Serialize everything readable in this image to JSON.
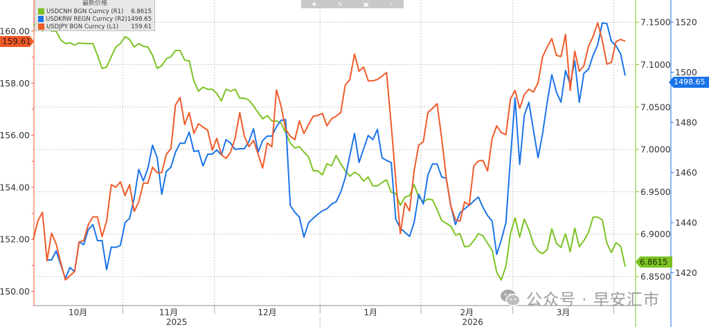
{
  "toolbar": {
    "icons": [
      "pin-icon",
      "pencil-icon",
      "save-icon",
      "zoom-icon"
    ]
  },
  "legend": {
    "title": "最新价格",
    "items": [
      {
        "name": "USDCNH BGN Curncy  (R1)",
        "value": "6.8615",
        "color": "#7cc223"
      },
      {
        "name": "USDKRW REGN Curncy  (R2)",
        "value": "1498.65",
        "color": "#1a73e8"
      },
      {
        "name": "USDJPY BGN Curncy  (L1)",
        "value": "159.61",
        "color": "#f05a28"
      }
    ]
  },
  "last_value_tags": {
    "jpy": "159.61",
    "krw": "1498.65",
    "cnh": "6.8615"
  },
  "watermark": {
    "text": "公众号 · 早安汇市",
    "icon": "wechat-icon"
  },
  "chart_data": {
    "type": "line",
    "title": "",
    "grid": true,
    "legend_position": "top-left",
    "x_tick_labels": [
      "10月",
      "11月",
      "12月",
      "1月",
      "2月",
      "3月"
    ],
    "year_labels": [
      "2025",
      "2026"
    ],
    "axes": {
      "L1": {
        "ylim": [
          149.5,
          161.0
        ],
        "ticks": [
          "150.00",
          "152.00",
          "154.00",
          "156.00",
          "158.00",
          "160.00"
        ],
        "color": "#f05a28"
      },
      "R1": {
        "ylim": [
          6.84,
          7.175
        ],
        "ticks": [
          "6.8500",
          "6.9000",
          "6.9500",
          "7.0000",
          "7.0500",
          "7.1000",
          "7.1500"
        ],
        "color": "#7cc223"
      },
      "R2": {
        "ylim": [
          1417,
          1527
        ],
        "ticks": [
          "1420",
          "1440",
          "1460",
          "1480",
          "1500",
          "1520"
        ],
        "color": "#1a73e8"
      }
    },
    "x": [
      "2025-10-06",
      "2025-10-07",
      "2025-10-08",
      "2025-10-09",
      "2025-10-10",
      "2025-10-13",
      "2025-10-14",
      "2025-10-15",
      "2025-10-16",
      "2025-10-17",
      "2025-10-20",
      "2025-10-21",
      "2025-10-22",
      "2025-10-23",
      "2025-10-24",
      "2025-10-27",
      "2025-10-28",
      "2025-10-29",
      "2025-10-30",
      "2025-10-31",
      "2025-11-03",
      "2025-11-04",
      "2025-11-05",
      "2025-11-06",
      "2025-11-07",
      "2025-11-10",
      "2025-11-11",
      "2025-11-12",
      "2025-11-13",
      "2025-11-14",
      "2025-11-17",
      "2025-11-18",
      "2025-11-19",
      "2025-11-20",
      "2025-11-21",
      "2025-11-24",
      "2025-11-25",
      "2025-11-26",
      "2025-11-27",
      "2025-11-28",
      "2025-12-01",
      "2025-12-02",
      "2025-12-03",
      "2025-12-04",
      "2025-12-05",
      "2025-12-08",
      "2025-12-09",
      "2025-12-10",
      "2025-12-11",
      "2025-12-12",
      "2025-12-15",
      "2025-12-16",
      "2025-12-17",
      "2025-12-18",
      "2025-12-19",
      "2025-12-22",
      "2025-12-23",
      "2025-12-24",
      "2025-12-25",
      "2025-12-26",
      "2025-12-29",
      "2025-12-30",
      "2025-12-31",
      "2026-01-01",
      "2026-01-02",
      "2026-01-05",
      "2026-01-06",
      "2026-01-07",
      "2026-01-08",
      "2026-01-09",
      "2026-01-12",
      "2026-01-13",
      "2026-01-14",
      "2026-01-15",
      "2026-01-16",
      "2026-01-19",
      "2026-01-20",
      "2026-01-21",
      "2026-01-22",
      "2026-01-23",
      "2026-01-26",
      "2026-01-27",
      "2026-01-28",
      "2026-01-29",
      "2026-01-30",
      "2026-02-02",
      "2026-02-03",
      "2026-02-04",
      "2026-02-05",
      "2026-02-06",
      "2026-02-09",
      "2026-02-10",
      "2026-02-11",
      "2026-02-12",
      "2026-02-13",
      "2026-02-16",
      "2026-02-17",
      "2026-02-18",
      "2026-02-19",
      "2026-02-20",
      "2026-02-23",
      "2026-02-24",
      "2026-02-25",
      "2026-02-26",
      "2026-02-27",
      "2026-03-02",
      "2026-03-03",
      "2026-03-04",
      "2026-03-05",
      "2026-03-06",
      "2026-03-09",
      "2026-03-10",
      "2026-03-11",
      "2026-03-12",
      "2026-03-13",
      "2026-03-16",
      "2026-03-17",
      "2026-03-18",
      "2026-03-19",
      "2026-03-20",
      "2026-03-23",
      "2026-03-24",
      "2026-03-25",
      "2026-03-26",
      "2026-03-27",
      "2026-03-30",
      "2026-03-31",
      "2026-04-01",
      "2026-04-02",
      "2026-04-03"
    ],
    "series": [
      {
        "name": "USDCNH BGN Curncy",
        "axis": "R1",
        "color": "#7cc223",
        "values": [
          7.1461,
          7.1493,
          7.1396,
          7.1453,
          7.1396,
          7.1396,
          7.129,
          7.1249,
          7.1257,
          7.1232,
          7.1257,
          7.1249,
          7.1249,
          7.1249,
          7.111,
          7.0955,
          7.0972,
          7.1094,
          7.1208,
          7.1249,
          7.133,
          7.1298,
          7.1208,
          7.1249,
          7.1216,
          7.1208,
          7.111,
          7.0955,
          7.0988,
          7.1069,
          7.1094,
          7.1167,
          7.1167,
          7.1053,
          7.1045,
          7.0808,
          7.0686,
          7.0735,
          7.071,
          7.071,
          7.0661,
          7.0572,
          7.071,
          7.0686,
          7.071,
          7.0604,
          7.0604,
          7.058,
          7.0515,
          7.0433,
          7.036,
          7.04,
          7.0335,
          7.0335,
          7.0311,
          7.0197,
          7.0074,
          7.0017,
          7.0033,
          6.9968,
          6.9911,
          6.9748,
          6.9748,
          6.9699,
          6.983,
          6.9805,
          6.9927,
          6.983,
          6.9748,
          6.9683,
          6.9732,
          6.9699,
          6.9626,
          6.9675,
          6.9569,
          6.9569,
          6.9609,
          6.9642,
          6.9495,
          6.9479,
          6.934,
          6.9438,
          6.9454,
          6.9585,
          6.9438,
          6.9381,
          6.9414,
          6.9405,
          6.9291,
          6.9161,
          6.9128,
          6.9095,
          6.8989,
          6.9006,
          6.8851,
          6.8859,
          6.8924,
          6.9006,
          6.8981,
          6.8892,
          6.881,
          6.8549,
          6.8459,
          6.8622,
          6.9006,
          6.9193,
          6.8965,
          6.9177,
          6.9055,
          6.8883,
          6.8802,
          6.8769,
          6.8818,
          6.9063,
          6.8892,
          6.8843,
          6.9006,
          6.8794,
          6.9071,
          6.8851,
          6.8924,
          6.9022,
          6.9201,
          6.9201,
          6.9169,
          6.8892,
          6.8785,
          6.89,
          6.8859,
          6.8615
        ]
      },
      {
        "name": "USDKRW REGN Curncy",
        "axis": "R2",
        "color": "#1a73e8",
        "values": [
          null,
          null,
          null,
          1425.1,
          1425.1,
          1428.7,
          1423.2,
          1417.7,
          1422.1,
          1420.4,
          1432.3,
          1431.2,
          1437.2,
          1439.2,
          1432.8,
          1432.8,
          1421.2,
          1430.3,
          1430.1,
          1430.9,
          1440.0,
          1441.7,
          1449.7,
          1461.2,
          1456.6,
          1461.8,
          1470.9,
          1465.9,
          1451.3,
          1460.4,
          1462.1,
          1468.1,
          1471.7,
          1471.7,
          1476.1,
          1468.4,
          1468.7,
          1462.6,
          1467.3,
          1467.3,
          1469.0,
          1467.0,
          1473.1,
          1471.7,
          1469.2,
          1469.5,
          1469.5,
          1472.3,
          1477.5,
          1468.1,
          1472.8,
          1474.5,
          1474.5,
          1478.3,
          1480.8,
          1481.1,
          1446.9,
          1444.1,
          1442.2,
          1434.2,
          1440.0,
          1441.7,
          1443.3,
          1444.7,
          1445.5,
          1447.4,
          1448.3,
          1452.1,
          1457.9,
          1466.8,
          1475.6,
          1464.0,
          1469.5,
          1474.8,
          1473.1,
          1477.2,
          1465.9,
          1464.8,
          1464.0,
          1441.4,
          1437.8,
          1436.1,
          1434.5,
          1440.0,
          1451.3,
          1447.4,
          1459.0,
          1463.4,
          1463.4,
          1458.2,
          1457.7,
          1446.6,
          1439.2,
          1443.9,
          1445.5,
          1446.9,
          1448.6,
          1450.2,
          1446.1,
          1442.8,
          1440.6,
          1427.3,
          1433.1,
          1440.0,
          1465.9,
          1489.7,
          1463.2,
          1482.8,
          1488.0,
          1477.0,
          1465.9,
          1475.6,
          1488.0,
          1499.0,
          1492.1,
          1488.0,
          1500.7,
          1495.2,
          1504.6,
          1488.0,
          1499.6,
          1501.2,
          1506.8,
          1510.9,
          1519.7,
          1519.4,
          1512.3,
          1510.6,
          1507.3,
          1498.65
        ]
      },
      {
        "name": "USDJPY BGN Curncy",
        "axis": "L1",
        "color": "#f05a28",
        "values": [
          151.98,
          152.7,
          153.04,
          151.18,
          152.24,
          151.82,
          151.1,
          150.44,
          150.6,
          150.76,
          151.9,
          151.95,
          152.56,
          152.86,
          152.86,
          152.11,
          152.7,
          154.1,
          154.0,
          154.21,
          153.68,
          154.1,
          153.07,
          153.44,
          154.16,
          154.16,
          154.77,
          154.56,
          154.56,
          155.27,
          155.48,
          157.16,
          157.45,
          156.41,
          156.87,
          156.07,
          156.44,
          156.31,
          156.2,
          155.43,
          155.88,
          155.25,
          155.11,
          155.35,
          155.88,
          156.87,
          155.96,
          155.56,
          155.8,
          155.27,
          154.74,
          155.7,
          155.56,
          157.74,
          157.13,
          156.23,
          155.96,
          155.83,
          156.55,
          156.07,
          156.41,
          156.73,
          156.76,
          156.84,
          156.36,
          156.63,
          156.73,
          156.87,
          157.93,
          158.14,
          159.12,
          158.46,
          158.62,
          158.09,
          158.09,
          158.14,
          158.27,
          158.41,
          156.41,
          154.29,
          152.22,
          153.41,
          153.09,
          154.63,
          155.62,
          155.75,
          156.87,
          157.03,
          157.21,
          155.88,
          154.37,
          153.28,
          152.75,
          152.7,
          153.44,
          153.31,
          154.82,
          155.01,
          155.03,
          154.63,
          155.88,
          156.36,
          156.1,
          156.02,
          157.4,
          157.72,
          157.03,
          157.56,
          157.77,
          157.66,
          158.01,
          159.02,
          159.39,
          159.71,
          159.07,
          159.02,
          159.87,
          157.72,
          159.23,
          158.46,
          158.67,
          159.42,
          159.79,
          160.32,
          159.65,
          158.73,
          158.8,
          159.6,
          159.68,
          159.61
        ]
      }
    ]
  }
}
